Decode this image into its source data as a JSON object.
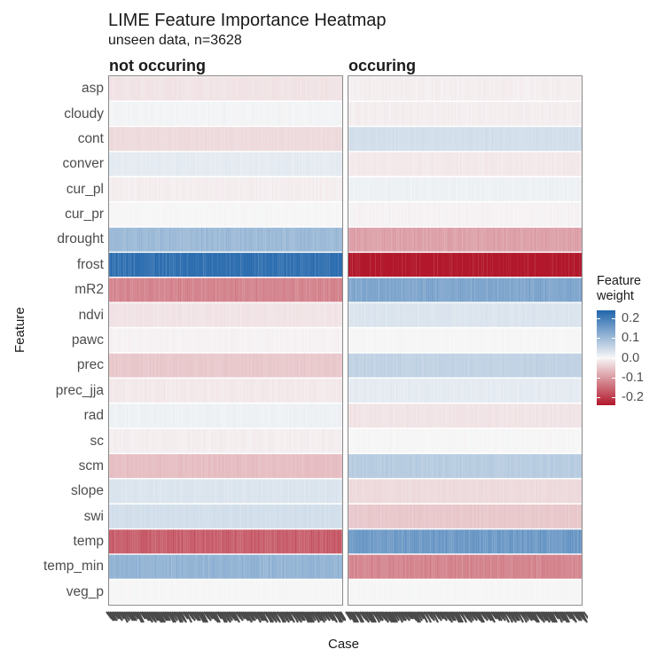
{
  "chart_data": {
    "type": "heatmap",
    "title": "LIME Feature Importance Heatmap",
    "subtitle": "unseen data, n=3628",
    "xlabel": "Case",
    "ylabel": "Feature",
    "legend": {
      "title_line1": "Feature",
      "title_line2": "weight",
      "ticks": [
        "0.2",
        "0.1",
        "0.0",
        "-0.1",
        "-0.2"
      ],
      "tick_values": [
        0.2,
        0.1,
        0.0,
        -0.1,
        -0.2
      ],
      "range": [
        -0.24,
        0.24
      ],
      "low_color": "#b2182b",
      "mid_color": "#f7f7f7",
      "high_color": "#2166ac",
      "placement": "right"
    },
    "features": [
      "asp",
      "cloudy",
      "cont",
      "conver",
      "cur_pl",
      "cur_pr",
      "drought",
      "frost",
      "mR2",
      "ndvi",
      "pawc",
      "prec",
      "prec_jja",
      "rad",
      "sc",
      "scm",
      "slope",
      "swi",
      "temp",
      "temp_min",
      "veg_p"
    ],
    "facets": [
      {
        "label": "not occuring",
        "weights": [
          -0.02,
          0.005,
          -0.03,
          0.02,
          -0.01,
          0.0,
          0.1,
          0.22,
          -0.12,
          -0.02,
          -0.005,
          -0.05,
          -0.015,
          0.01,
          -0.01,
          -0.06,
          0.03,
          0.04,
          -0.16,
          0.11,
          0.0
        ]
      },
      {
        "label": "occuring",
        "weights": [
          -0.01,
          -0.01,
          0.04,
          -0.015,
          0.01,
          -0.005,
          -0.09,
          -0.24,
          0.13,
          0.03,
          0.0,
          0.06,
          0.02,
          -0.02,
          0.0,
          0.07,
          -0.03,
          -0.05,
          0.15,
          -0.12,
          0.0
        ]
      }
    ]
  }
}
